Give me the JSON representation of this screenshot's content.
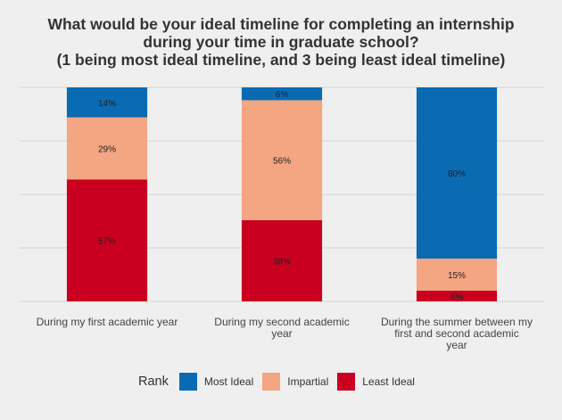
{
  "title_lines": [
    "What would be your ideal timeline for completing an internship",
    "during your time in graduate school?",
    "(1 being most ideal timeline, and 3 being least ideal timeline)"
  ],
  "legend_title": "Rank",
  "colors": {
    "Most Ideal": "#0a6bb3",
    "Impartial": "#f4a582",
    "Least Ideal": "#ca0020",
    "grid": "#d6d6d6",
    "background": "#efefef"
  },
  "chart_data": {
    "type": "bar",
    "stacked": true,
    "normalized": true,
    "categories": [
      [
        "During my first academic year"
      ],
      [
        "During my second academic",
        "year"
      ],
      [
        "During the summer between my",
        "first and second academic",
        "year"
      ]
    ],
    "series": [
      {
        "name": "Least Ideal",
        "values": [
          57,
          38,
          5
        ],
        "labels": [
          "57%",
          "38%",
          "5%"
        ]
      },
      {
        "name": "Impartial",
        "values": [
          29,
          56,
          15
        ],
        "labels": [
          "29%",
          "56%",
          "15%"
        ]
      },
      {
        "name": "Most Ideal",
        "values": [
          14,
          6,
          80
        ],
        "labels": [
          "14%",
          "6%",
          "80%"
        ]
      }
    ],
    "legend_order": [
      "Most Ideal",
      "Impartial",
      "Least Ideal"
    ],
    "legend_position": "bottom",
    "ylim": [
      0,
      100
    ],
    "grid": true,
    "y_axis_labels_shown": false
  }
}
